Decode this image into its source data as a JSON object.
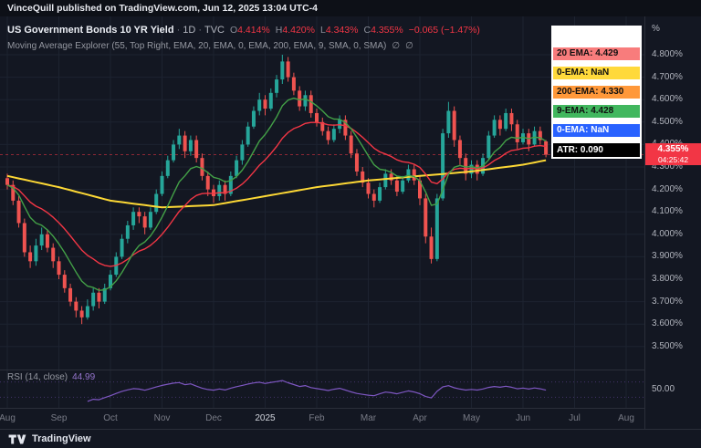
{
  "top_bar": {
    "text": "VinceQuill published on TradingView.com, Jun 12, 2025 13:04 UTC-4"
  },
  "header": {
    "symbol": "US Government Bonds 10 YR Yield",
    "sep": "·",
    "interval": "1D",
    "exchange": "TVC",
    "ohlc": {
      "o_label": "O",
      "o": "4.414%",
      "h_label": "H",
      "h": "4.420%",
      "l_label": "L",
      "l": "4.343%",
      "c_label": "C",
      "c": "4.355%",
      "change": "−0.065 (−1.47%)"
    },
    "indicator_line": "Moving Average Explorer (55, Top Right, EMA, 20, EMA, 0, EMA, 200, EMA, 9, SMA, 0, SMA)",
    "hidden_icon": "∅"
  },
  "legend": {
    "rows": [
      {
        "label": "",
        "bg": "#ffffff",
        "fg": "#000000"
      },
      {
        "label": "20 EMA: 4.429",
        "bg": "#f87c7c",
        "fg": "#101010"
      },
      {
        "label": "0-EMA: NaN",
        "bg": "#ffd93b",
        "fg": "#101010"
      },
      {
        "label": "200-EMA: 4.330",
        "bg": "#ff9839",
        "fg": "#101010"
      },
      {
        "label": "9-EMA: 4.428",
        "bg": "#41b75e",
        "fg": "#101010"
      },
      {
        "label": "0-EMA: NaN",
        "bg": "#2962ff",
        "fg": "#ffffff"
      },
      {
        "label": "ATR: 0.090",
        "bg": "#000000",
        "fg": "#ffffff"
      }
    ]
  },
  "price_scale": {
    "unit": "%",
    "ticks": [
      "4.800%",
      "4.700%",
      "4.600%",
      "4.500%",
      "4.400%",
      "4.300%",
      "4.200%",
      "4.100%",
      "4.000%",
      "3.900%",
      "3.800%",
      "3.700%",
      "3.600%",
      "3.500%"
    ],
    "rsi_tick": "50.00",
    "price_tag": {
      "price": "4.355%",
      "countdown": "04:25:42",
      "bg": "#f23645"
    }
  },
  "time_scale": {
    "labels": [
      "Aug",
      "Sep",
      "Oct",
      "Nov",
      "Dec",
      "2025",
      "Feb",
      "Mar",
      "Apr",
      "May",
      "Jun",
      "Jul",
      "Aug"
    ]
  },
  "rsi_panel": {
    "label": "RSI (14, close)",
    "value": "44.99"
  },
  "footer": {
    "brand": "TradingView"
  },
  "chart_data": {
    "type": "candlestick",
    "title": "US Government Bonds 10 YR Yield · 1D · TVC",
    "unit": "%",
    "y_axis": {
      "min": 3.4,
      "max": 4.97,
      "tick_step": 0.1,
      "labeled_range": [
        3.5,
        4.8
      ]
    },
    "x_axis": {
      "months": [
        "Aug 2024",
        "Sep 2024",
        "Oct 2024",
        "Nov 2024",
        "Dec 2024",
        "Jan 2025",
        "Feb 2025",
        "Mar 2025",
        "Apr 2025",
        "May 2025",
        "Jun 2025"
      ],
      "bars_per_month": 9,
      "future_months_shown": [
        "Jul 2025",
        "Aug 2025"
      ]
    },
    "candle_colors": {
      "up": "#26a69a",
      "down": "#ef5350"
    },
    "candles": [
      [
        4.25,
        4.27,
        4.2,
        4.22
      ],
      [
        4.22,
        4.24,
        4.13,
        4.15
      ],
      [
        4.15,
        4.17,
        4.03,
        4.05
      ],
      [
        4.05,
        4.07,
        3.9,
        3.92
      ],
      [
        3.92,
        3.95,
        3.85,
        3.88
      ],
      [
        3.88,
        3.98,
        3.86,
        3.95
      ],
      [
        3.95,
        4.03,
        3.93,
        4.0
      ],
      [
        4.0,
        4.02,
        3.92,
        3.94
      ],
      [
        3.94,
        3.96,
        3.85,
        3.88
      ],
      [
        3.88,
        3.9,
        3.8,
        3.82
      ],
      [
        3.82,
        3.84,
        3.74,
        3.76
      ],
      [
        3.76,
        3.78,
        3.68,
        3.7
      ],
      [
        3.7,
        3.72,
        3.63,
        3.66
      ],
      [
        3.66,
        3.68,
        3.6,
        3.63
      ],
      [
        3.63,
        3.71,
        3.62,
        3.68
      ],
      [
        3.68,
        3.76,
        3.66,
        3.74
      ],
      [
        3.74,
        3.76,
        3.67,
        3.7
      ],
      [
        3.7,
        3.78,
        3.69,
        3.76
      ],
      [
        3.76,
        3.84,
        3.75,
        3.82
      ],
      [
        3.82,
        3.92,
        3.81,
        3.9
      ],
      [
        3.9,
        4.0,
        3.89,
        3.98
      ],
      [
        3.98,
        4.06,
        3.96,
        4.04
      ],
      [
        4.04,
        4.12,
        4.02,
        4.1
      ],
      [
        4.1,
        4.12,
        4.05,
        4.08
      ],
      [
        4.08,
        4.1,
        4.0,
        4.03
      ],
      [
        4.03,
        4.12,
        4.02,
        4.1
      ],
      [
        4.1,
        4.2,
        4.09,
        4.18
      ],
      [
        4.18,
        4.28,
        4.17,
        4.26
      ],
      [
        4.26,
        4.35,
        4.25,
        4.33
      ],
      [
        4.33,
        4.42,
        4.32,
        4.4
      ],
      [
        4.4,
        4.47,
        4.38,
        4.44
      ],
      [
        4.44,
        4.46,
        4.34,
        4.37
      ],
      [
        4.37,
        4.44,
        4.35,
        4.42
      ],
      [
        4.42,
        4.44,
        4.32,
        4.34
      ],
      [
        4.34,
        4.36,
        4.24,
        4.26
      ],
      [
        4.26,
        4.28,
        4.17,
        4.2
      ],
      [
        4.2,
        4.22,
        4.14,
        4.17
      ],
      [
        4.17,
        4.24,
        4.15,
        4.22
      ],
      [
        4.22,
        4.24,
        4.15,
        4.18
      ],
      [
        4.18,
        4.28,
        4.17,
        4.26
      ],
      [
        4.26,
        4.35,
        4.25,
        4.33
      ],
      [
        4.33,
        4.42,
        4.31,
        4.4
      ],
      [
        4.4,
        4.5,
        4.39,
        4.48
      ],
      [
        4.48,
        4.57,
        4.47,
        4.55
      ],
      [
        4.55,
        4.63,
        4.53,
        4.6
      ],
      [
        4.6,
        4.62,
        4.53,
        4.56
      ],
      [
        4.56,
        4.65,
        4.55,
        4.63
      ],
      [
        4.63,
        4.71,
        4.61,
        4.69
      ],
      [
        4.69,
        4.8,
        4.67,
        4.77
      ],
      [
        4.77,
        4.79,
        4.68,
        4.7
      ],
      [
        4.7,
        4.72,
        4.62,
        4.64
      ],
      [
        4.64,
        4.66,
        4.55,
        4.57
      ],
      [
        4.57,
        4.64,
        4.55,
        4.62
      ],
      [
        4.62,
        4.64,
        4.52,
        4.54
      ],
      [
        4.54,
        4.56,
        4.48,
        4.5
      ],
      [
        4.5,
        4.52,
        4.44,
        4.46
      ],
      [
        4.46,
        4.48,
        4.4,
        4.42
      ],
      [
        4.42,
        4.49,
        4.41,
        4.47
      ],
      [
        4.47,
        4.53,
        4.45,
        4.51
      ],
      [
        4.51,
        4.53,
        4.42,
        4.44
      ],
      [
        4.44,
        4.46,
        4.34,
        4.36
      ],
      [
        4.36,
        4.38,
        4.26,
        4.28
      ],
      [
        4.28,
        4.3,
        4.21,
        4.23
      ],
      [
        4.23,
        4.25,
        4.16,
        4.18
      ],
      [
        4.18,
        4.2,
        4.12,
        4.15
      ],
      [
        4.15,
        4.23,
        4.14,
        4.21
      ],
      [
        4.21,
        4.29,
        4.2,
        4.27
      ],
      [
        4.27,
        4.29,
        4.22,
        4.24
      ],
      [
        4.24,
        4.26,
        4.17,
        4.19
      ],
      [
        4.19,
        4.26,
        4.18,
        4.24
      ],
      [
        4.24,
        4.31,
        4.23,
        4.29
      ],
      [
        4.29,
        4.31,
        4.22,
        4.24
      ],
      [
        4.24,
        4.26,
        4.13,
        4.16
      ],
      [
        4.16,
        4.18,
        3.96,
        3.99
      ],
      [
        3.99,
        4.03,
        3.87,
        3.89
      ],
      [
        3.89,
        4.18,
        3.88,
        4.16
      ],
      [
        4.16,
        4.47,
        4.15,
        4.45
      ],
      [
        4.45,
        4.59,
        4.43,
        4.55
      ],
      [
        4.55,
        4.57,
        4.39,
        4.42
      ],
      [
        4.42,
        4.44,
        4.31,
        4.34
      ],
      [
        4.34,
        4.36,
        4.24,
        4.27
      ],
      [
        4.27,
        4.33,
        4.25,
        4.31
      ],
      [
        4.31,
        4.33,
        4.24,
        4.27
      ],
      [
        4.27,
        4.36,
        4.26,
        4.34
      ],
      [
        4.34,
        4.46,
        4.33,
        4.44
      ],
      [
        4.44,
        4.53,
        4.43,
        4.51
      ],
      [
        4.51,
        4.53,
        4.44,
        4.47
      ],
      [
        4.47,
        4.56,
        4.46,
        4.54
      ],
      [
        4.54,
        4.56,
        4.46,
        4.49
      ],
      [
        4.49,
        4.51,
        4.38,
        4.41
      ],
      [
        4.41,
        4.47,
        4.4,
        4.45
      ],
      [
        4.45,
        4.47,
        4.37,
        4.4
      ],
      [
        4.4,
        4.48,
        4.39,
        4.46
      ],
      [
        4.46,
        4.48,
        4.4,
        4.42
      ],
      [
        4.414,
        4.42,
        4.343,
        4.355
      ]
    ],
    "last": {
      "open": 4.414,
      "high": 4.42,
      "low": 4.343,
      "close": 4.355,
      "change": -0.065,
      "change_pct": -1.47
    },
    "overlays": [
      {
        "name": "EMA 20",
        "period": 20,
        "color": "#f23645",
        "last_value": 4.429
      },
      {
        "name": "EMA 9",
        "period": 9,
        "color": "#43a047",
        "last_value": 4.428
      },
      {
        "name": "EMA 200",
        "period": 200,
        "color": "#fdd835",
        "last_value": 4.33,
        "anchors": [
          [
            0,
            4.26
          ],
          [
            9,
            4.21
          ],
          [
            18,
            4.15
          ],
          [
            27,
            4.12
          ],
          [
            36,
            4.13
          ],
          [
            45,
            4.17
          ],
          [
            54,
            4.21
          ],
          [
            63,
            4.24
          ],
          [
            72,
            4.26
          ],
          [
            81,
            4.28
          ],
          [
            90,
            4.31
          ],
          [
            94,
            4.33
          ]
        ]
      }
    ],
    "atr": 0.09,
    "rsi": {
      "period": 14,
      "last": 44.99,
      "color": "#7e57c2",
      "levels": [
        70,
        30
      ]
    }
  }
}
